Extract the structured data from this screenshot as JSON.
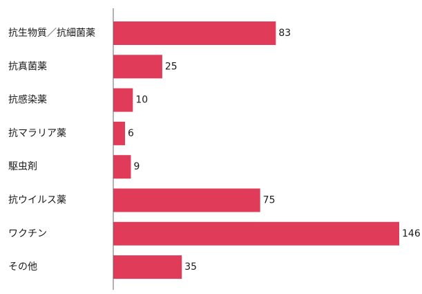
{
  "chart_data": {
    "type": "bar",
    "orientation": "horizontal",
    "categories": [
      "抗生物質／抗細菌薬",
      "抗真菌薬",
      "抗感染薬",
      "抗マラリア薬",
      "駆虫剤",
      "抗ウイルス薬",
      "ワクチン",
      "その他"
    ],
    "values": [
      83,
      25,
      10,
      6,
      9,
      75,
      146,
      35
    ],
    "xlim": [
      0,
      146
    ],
    "grid": false,
    "legend": "none",
    "data_labels": true,
    "colors": {
      "bar": "#e03c5a",
      "axis": "#666666",
      "text": "#1a1a1a"
    }
  }
}
